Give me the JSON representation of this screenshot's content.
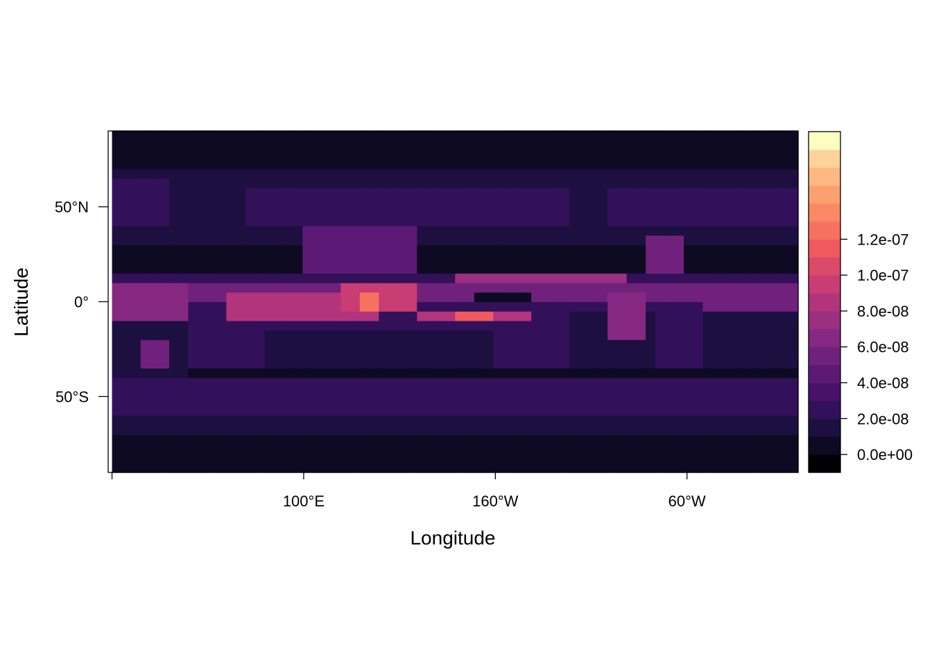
{
  "chart_data": {
    "type": "heatmap",
    "title": "",
    "xlabel": "Longitude",
    "ylabel": "Latitude",
    "x_ticks": [
      {
        "value": 0,
        "label": ""
      },
      {
        "value": 100,
        "label": "100°E"
      },
      {
        "value": 200,
        "label": "160°W"
      },
      {
        "value": 300,
        "label": "60°W"
      }
    ],
    "y_ticks": [
      {
        "value": 50,
        "label": "50°N"
      },
      {
        "value": 0,
        "label": "0°"
      },
      {
        "value": -50,
        "label": "50°S"
      }
    ],
    "xlim": [
      -2,
      358
    ],
    "ylim": [
      -90,
      90
    ],
    "grid": false,
    "legend": "right",
    "colorbar": {
      "min": -1e-08,
      "max": 1.35e-07,
      "step": 1e-08,
      "colors": [
        "#000004",
        "#0d0a22",
        "#1d1040",
        "#33105a",
        "#48126b",
        "#5c1a76",
        "#70217c",
        "#862881",
        "#9b2f80",
        "#b2357b",
        "#c83d73",
        "#dc4a6a",
        "#ee5a60",
        "#f7715f",
        "#fb8964",
        "#fda06f",
        "#fdb883",
        "#fdd39c",
        "#fcfdbf"
      ],
      "ticks": [
        {
          "value": 0,
          "label": "0.0e+00"
        },
        {
          "value": 2e-08,
          "label": "2.0e-08"
        },
        {
          "value": 4e-08,
          "label": "4.0e-08"
        },
        {
          "value": 6e-08,
          "label": "6.0e-08"
        },
        {
          "value": 8e-08,
          "label": "8.0e-08"
        },
        {
          "value": 1e-07,
          "label": "1.0e-07"
        },
        {
          "value": 1.2e-07,
          "label": "1.2e-07"
        }
      ]
    },
    "features": [
      {
        "lon": [
          0,
          358
        ],
        "lat": [
          -90,
          90
        ],
        "value": 2e-09
      },
      {
        "lon": [
          0,
          358
        ],
        "lat": [
          -72,
          -55
        ],
        "value": 1.2e-08
      },
      {
        "lon": [
          0,
          358
        ],
        "lat": [
          -60,
          -38
        ],
        "value": 2.8e-08
      },
      {
        "lon": [
          0,
          358
        ],
        "lat": [
          30,
          70
        ],
        "value": 1.2e-08
      },
      {
        "lon": [
          0,
          30
        ],
        "lat": [
          40,
          65
        ],
        "value": 2.5e-08
      },
      {
        "lon": [
          70,
          240
        ],
        "lat": [
          38,
          62
        ],
        "value": 2.5e-08
      },
      {
        "lon": [
          260,
          358
        ],
        "lat": [
          38,
          62
        ],
        "value": 2.5e-08
      },
      {
        "lon": [
          0,
          358
        ],
        "lat": [
          -35,
          15
        ],
        "value": 2.8e-08
      },
      {
        "lon": [
          0,
          40
        ],
        "lat": [
          -40,
          -10
        ],
        "value": 1e-08
      },
      {
        "lon": [
          80,
          200
        ],
        "lat": [
          -35,
          -15
        ],
        "value": 1e-08
      },
      {
        "lon": [
          240,
          285
        ],
        "lat": [
          -35,
          -5
        ],
        "value": 1e-08
      },
      {
        "lon": [
          310,
          358
        ],
        "lat": [
          -35,
          -5
        ],
        "value": 1e-08
      },
      {
        "lon": [
          0,
          358
        ],
        "lat": [
          2,
          12
        ],
        "value": 5.5e-08
      },
      {
        "lon": [
          180,
          270
        ],
        "lat": [
          8,
          13
        ],
        "value": 7.5e-08
      },
      {
        "lon": [
          0,
          40
        ],
        "lat": [
          -10,
          10
        ],
        "value": 6.5e-08
      },
      {
        "lon": [
          310,
          358
        ],
        "lat": [
          -5,
          10
        ],
        "value": 6e-08
      },
      {
        "lon": [
          60,
          140
        ],
        "lat": [
          -10,
          5
        ],
        "value": 8e-08
      },
      {
        "lon": [
          120,
          160
        ],
        "lat": [
          -5,
          8
        ],
        "value": 9.5e-08
      },
      {
        "lon": [
          130,
          140
        ],
        "lat": [
          -3,
          3
        ],
        "value": 1.2e-07
      },
      {
        "lon": [
          160,
          220
        ],
        "lat": [
          -10,
          -3
        ],
        "value": 8.5e-08
      },
      {
        "lon": [
          180,
          200
        ],
        "lat": [
          -8,
          -5
        ],
        "value": 1.1e-07
      },
      {
        "lon": [
          190,
          220
        ],
        "lat": [
          0,
          5
        ],
        "value": 5e-09
      },
      {
        "lon": [
          100,
          160
        ],
        "lat": [
          15,
          40
        ],
        "value": 4.5e-08
      },
      {
        "lon": [
          260,
          280
        ],
        "lat": [
          -20,
          5
        ],
        "value": 6.5e-08
      },
      {
        "lon": [
          280,
          300
        ],
        "lat": [
          15,
          35
        ],
        "value": 5.5e-08
      },
      {
        "lon": [
          15,
          30
        ],
        "lat": [
          -35,
          -20
        ],
        "value": 5.5e-08
      },
      {
        "lon": [
          10,
          30
        ],
        "lat": [
          15,
          30
        ],
        "value": 0.0
      },
      {
        "lon": [
          32,
          120
        ],
        "lat": [
          -85,
          -78
        ],
        "value": 0.0
      }
    ]
  }
}
